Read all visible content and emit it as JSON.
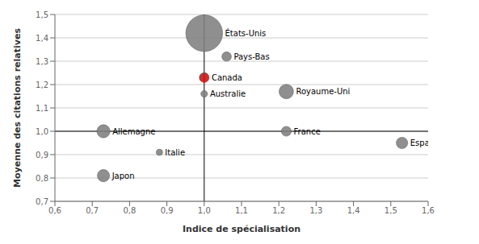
{
  "chart_data": {
    "type": "scatter",
    "xlabel": "Indice de spécialisation",
    "ylabel": "Moyenne des citations relatives",
    "labels": [
      "États-Unis",
      "Pays-Bas",
      "Canada",
      "Australie",
      "Allemagne",
      "Royaume-Uni",
      "Japon",
      "Italie",
      "France",
      "Espagne"
    ],
    "x": [
      1.0,
      1.06,
      1.0,
      1.0,
      0.73,
      1.22,
      0.73,
      0.88,
      1.22,
      1.53
    ],
    "values": [
      1.42,
      1.32,
      1.23,
      1.16,
      1.0,
      1.17,
      0.81,
      0.91,
      1.0,
      0.95
    ],
    "sizes": [
      1800,
      120,
      130,
      60,
      230,
      280,
      200,
      55,
      130,
      175
    ],
    "colors": [
      "#808080",
      "#808080",
      "#cc1111",
      "#808080",
      "#808080",
      "#808080",
      "#808080",
      "#808080",
      "#808080",
      "#808080"
    ],
    "xlim": [
      0.6,
      1.6
    ],
    "ylim": [
      0.7,
      1.5
    ],
    "xticks": [
      {
        "value": 0.6,
        "label": "0,6"
      },
      {
        "value": 0.7,
        "label": "0,7"
      },
      {
        "value": 0.8,
        "label": "0,8"
      },
      {
        "value": 0.9,
        "label": "0,9"
      },
      {
        "value": 1.0,
        "label": "1,0"
      },
      {
        "value": 1.1,
        "label": "1,1"
      },
      {
        "value": 1.2,
        "label": "1,2"
      },
      {
        "value": 1.3,
        "label": "1,3"
      },
      {
        "value": 1.4,
        "label": "1,4"
      },
      {
        "value": 1.5,
        "label": "1,5"
      },
      {
        "value": 1.6,
        "label": "1,6"
      }
    ],
    "yticks": [
      {
        "value": 0.7,
        "label": "0,7"
      },
      {
        "value": 0.8,
        "label": "0,8"
      },
      {
        "value": 0.9,
        "label": "0,9"
      },
      {
        "value": 1.0,
        "label": "1,0"
      },
      {
        "value": 1.1,
        "label": "1,1"
      },
      {
        "value": 1.2,
        "label": "1,2"
      },
      {
        "value": 1.3,
        "label": "1,3"
      },
      {
        "value": 1.4,
        "label": "1,4"
      },
      {
        "value": 1.5,
        "label": "1,5"
      }
    ],
    "reference_lines": {
      "x": 1.0,
      "y": 1.0
    },
    "grid": "y"
  }
}
